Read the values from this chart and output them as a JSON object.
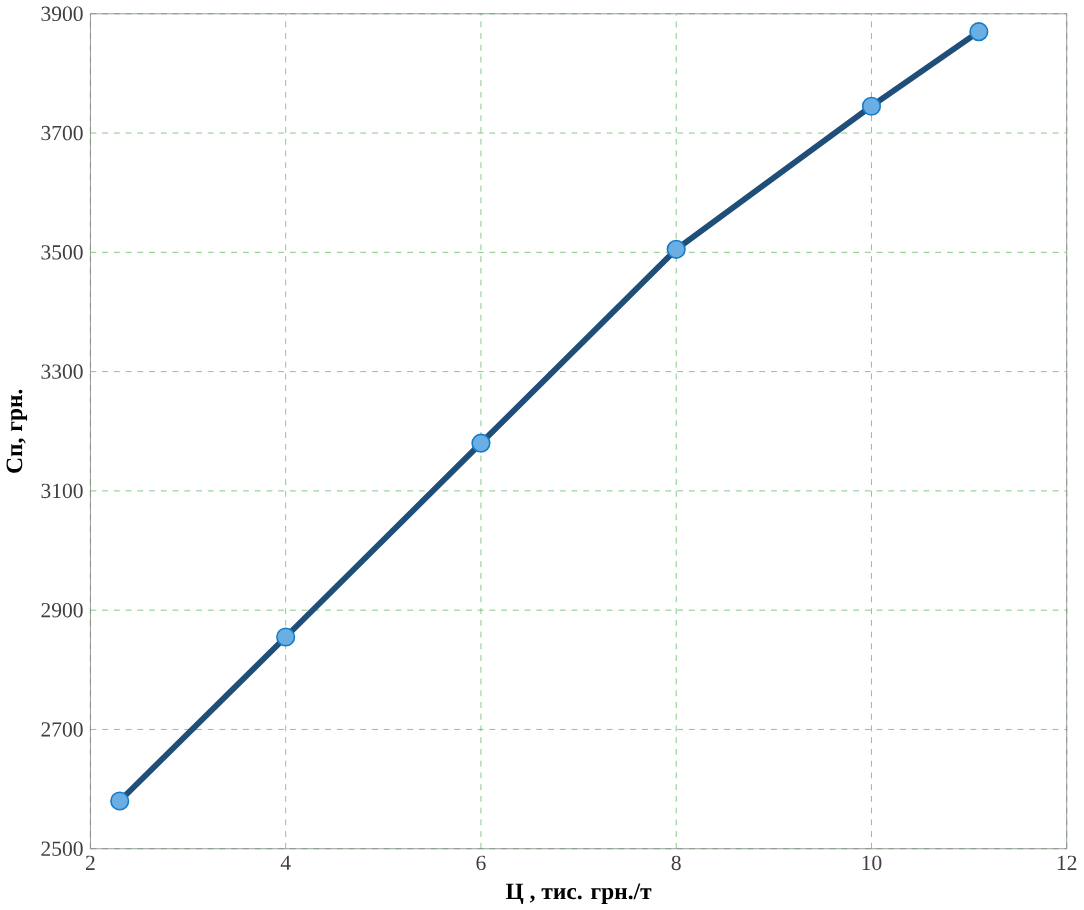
{
  "chart_data": {
    "type": "line",
    "xlabel": "Ц , тис. грн./т",
    "ylabel": "Сп, грн.",
    "x": [
      2.3,
      4,
      6,
      8,
      10,
      11.1
    ],
    "series": [
      {
        "color": "#1f4e79",
        "values": [
          2580,
          2855,
          3180,
          3505,
          3745,
          3870
        ]
      }
    ],
    "xlim": [
      2,
      12
    ],
    "xticks": [
      2,
      4,
      6,
      8,
      10,
      12
    ],
    "ylim": [
      2500,
      3900
    ],
    "yticks": [
      2500,
      2700,
      2900,
      3100,
      3300,
      3500,
      3700,
      3900
    ],
    "grid": true,
    "marker": "circle",
    "line_style": "solid"
  }
}
